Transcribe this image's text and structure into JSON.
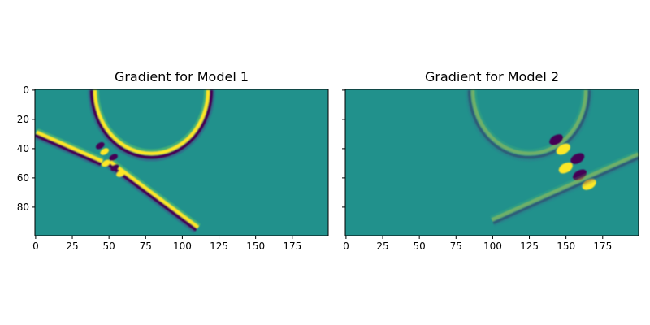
{
  "chart_data": [
    {
      "type": "heatmap",
      "title": "Gradient for Model 1",
      "colormap": "viridis",
      "xlim": [
        0,
        199
      ],
      "ylim": [
        99,
        0
      ],
      "x_ticks": [
        0,
        25,
        50,
        75,
        100,
        125,
        150,
        175
      ],
      "y_ticks": [
        0,
        20,
        40,
        60,
        80
      ],
      "features": [
        {
          "kind": "ring",
          "center": [
            79,
            0
          ],
          "radius": 40,
          "note": "upper arc from x≈38 to x≈120 reaching depth ≈45"
        },
        {
          "kind": "band",
          "from": [
            0,
            30
          ],
          "to": [
            45,
            50
          ],
          "note": "left-side band meeting the ring"
        },
        {
          "kind": "band",
          "from": [
            50,
            50
          ],
          "to": [
            110,
            95
          ],
          "note": "lower diagonal band"
        },
        {
          "kind": "crossing",
          "at": [
            50,
            48
          ],
          "note": "strong crossing near x≈50, y≈48"
        }
      ]
    },
    {
      "type": "heatmap",
      "title": "Gradient for Model 2",
      "colormap": "viridis",
      "xlim": [
        0,
        199
      ],
      "ylim": [
        99,
        0
      ],
      "x_ticks": [
        0,
        25,
        50,
        75,
        100,
        125,
        150,
        175
      ],
      "y_ticks": [
        0,
        20,
        40,
        60,
        80
      ],
      "features": [
        {
          "kind": "ring",
          "center": [
            125,
            0
          ],
          "radius": 40,
          "note": "faint upper arcs"
        },
        {
          "kind": "crossing",
          "at": [
            153,
            50
          ],
          "note": "strong crossing near x≈153, y≈50"
        },
        {
          "kind": "band",
          "from": [
            100,
            90
          ],
          "to": [
            200,
            45
          ],
          "note": "faint lower diagonal band"
        }
      ]
    }
  ]
}
